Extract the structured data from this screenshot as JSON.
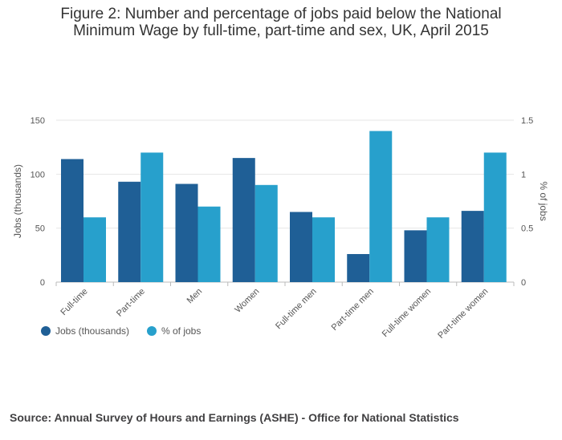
{
  "title_line1": "Figure 2: Number and percentage of jobs paid below the National",
  "title_line2": "Minimum Wage by full-time, part-time and sex, UK, April 2015",
  "source": "Source: Annual Survey of Hours and Earnings (ASHE) - Office for National Statistics",
  "chart_data": {
    "type": "bar",
    "categories": [
      "Full-time",
      "Part-time",
      "Men",
      "Women",
      "Full-time men",
      "Part-time men",
      "Full-time women",
      "Part-time women"
    ],
    "series": [
      {
        "name": "Jobs (thousands)",
        "axis": "left",
        "color": "#1f5f96",
        "values": [
          114,
          93,
          91,
          115,
          65,
          26,
          48,
          66
        ]
      },
      {
        "name": "% of jobs",
        "axis": "right",
        "color": "#27a0cc",
        "values": [
          0.6,
          1.2,
          0.7,
          0.9,
          0.6,
          1.4,
          0.6,
          1.2
        ]
      }
    ],
    "ylabel": "Jobs (thousands)",
    "y2label": "% of jobs",
    "ylim": [
      0,
      150
    ],
    "y2lim": [
      0,
      1.5
    ],
    "yticks": [
      "0",
      "50",
      "100",
      "150"
    ],
    "y2ticks": [
      "0",
      "0.5",
      "1",
      "1.5"
    ],
    "legend_position": "bottom-left",
    "grid": true
  }
}
